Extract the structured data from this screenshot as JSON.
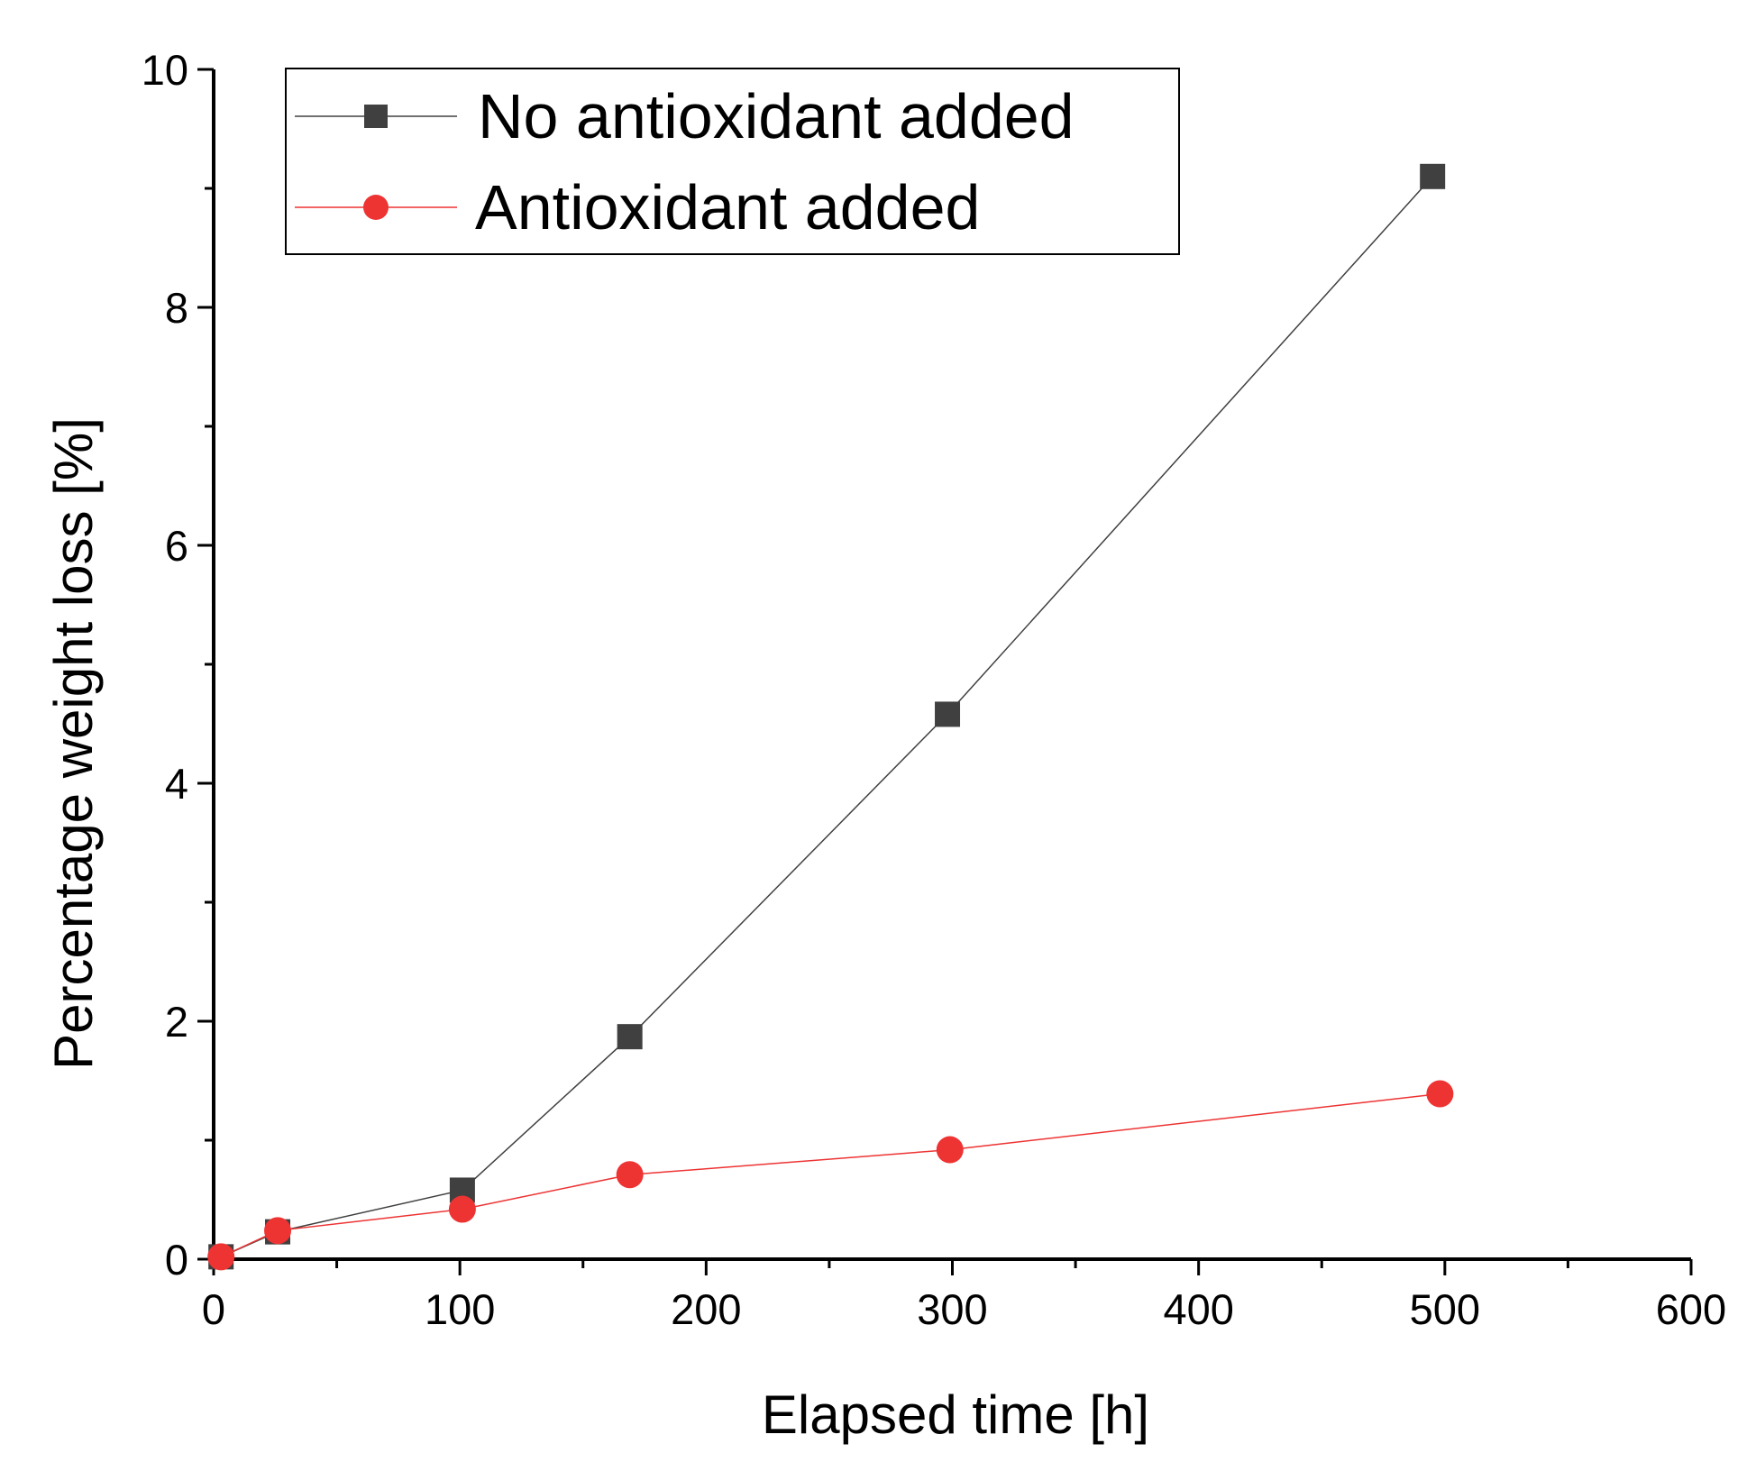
{
  "chart_data": {
    "type": "line",
    "title": "",
    "xlabel": "Elapsed time [h]",
    "ylabel": "Percentage weight loss [%]",
    "xlim": [
      0,
      600
    ],
    "ylim": [
      0,
      10
    ],
    "x_ticks": [
      "0",
      "100",
      "200",
      "300",
      "400",
      "500",
      "600"
    ],
    "y_ticks": [
      "0",
      "2",
      "4",
      "6",
      "8",
      "10"
    ],
    "grid": false,
    "legend_position": "top-left",
    "series": [
      {
        "name": "No antioxidant added",
        "marker": "square",
        "color": "#404040",
        "x": [
          3,
          26,
          101,
          169,
          298,
          495
        ],
        "y": [
          0.02,
          0.23,
          0.58,
          1.87,
          4.58,
          9.1
        ]
      },
      {
        "name": "Antioxidant added",
        "marker": "circle",
        "color": "#ee3333",
        "x": [
          3,
          26,
          101,
          169,
          299,
          498
        ],
        "y": [
          0.02,
          0.24,
          0.42,
          0.71,
          0.92,
          1.39
        ]
      }
    ]
  }
}
